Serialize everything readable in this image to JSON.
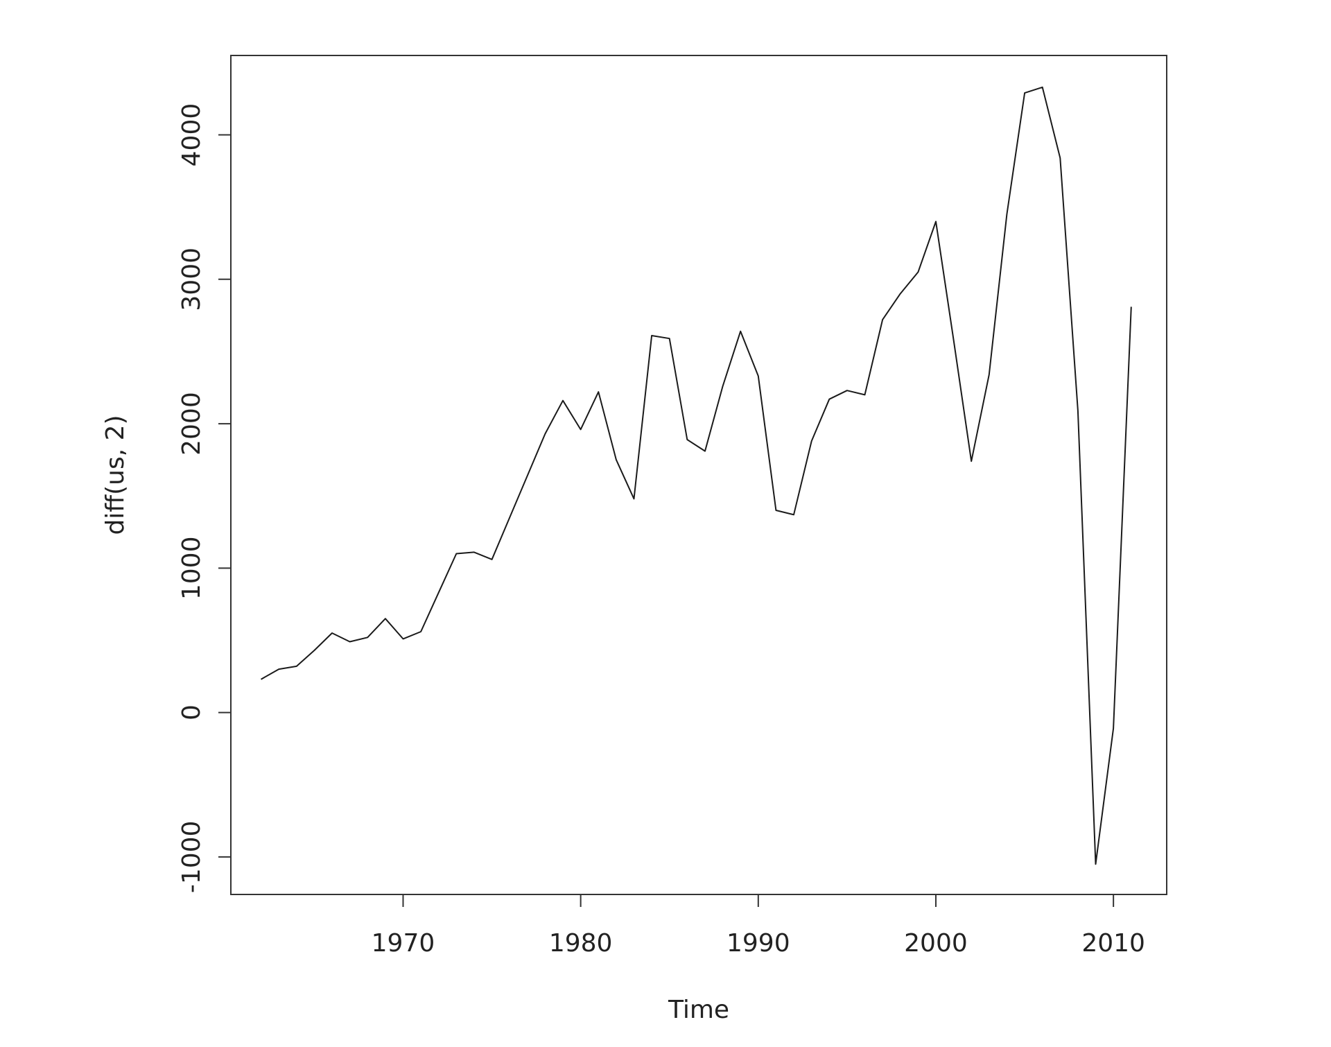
{
  "chart_data": {
    "type": "line",
    "title": "",
    "xlabel": "Time",
    "ylabel": "diff(us, 2)",
    "xlim": [
      1960.3,
      2013
    ],
    "ylim": [
      -1260,
      4550
    ],
    "grid": false,
    "legend": "none",
    "x_ticks": [
      1970,
      1980,
      1990,
      2000,
      2010
    ],
    "y_ticks": [
      -1000,
      0,
      1000,
      2000,
      3000,
      4000
    ],
    "x_tick_labels": [
      "1970",
      "1980",
      "1990",
      "2000",
      "2010"
    ],
    "y_tick_labels": [
      "-1000",
      "0",
      "1000",
      "2000",
      "3000",
      "4000"
    ],
    "line_color": "#1a1a1a",
    "series": [
      {
        "x": [
          1962,
          1963,
          1964,
          1965,
          1966,
          1967,
          1968,
          1969,
          1970,
          1971,
          1972,
          1973,
          1974,
          1975,
          1976,
          1977,
          1978,
          1979,
          1980,
          1981,
          1982,
          1983,
          1984,
          1985,
          1986,
          1987,
          1988,
          1989,
          1990,
          1991,
          1992,
          1993,
          1994,
          1995,
          1996,
          1997,
          1998,
          1999,
          2000,
          2001,
          2002,
          2003,
          2004,
          2005,
          2006,
          2007,
          2008,
          2009,
          2010,
          2011
        ],
        "values": [
          230,
          300,
          320,
          430,
          550,
          490,
          520,
          650,
          510,
          560,
          830,
          1100,
          1110,
          1060,
          1350,
          1640,
          1930,
          2160,
          1960,
          2220,
          1750,
          1480,
          2610,
          2590,
          1890,
          1810,
          2260,
          2640,
          2330,
          1400,
          1370,
          1880,
          2170,
          2230,
          2200,
          2720,
          2900,
          3050,
          3400,
          2580,
          1740,
          2340,
          3450,
          4290,
          4330,
          3840,
          2090,
          -1050,
          -110,
          2810
        ]
      }
    ]
  }
}
